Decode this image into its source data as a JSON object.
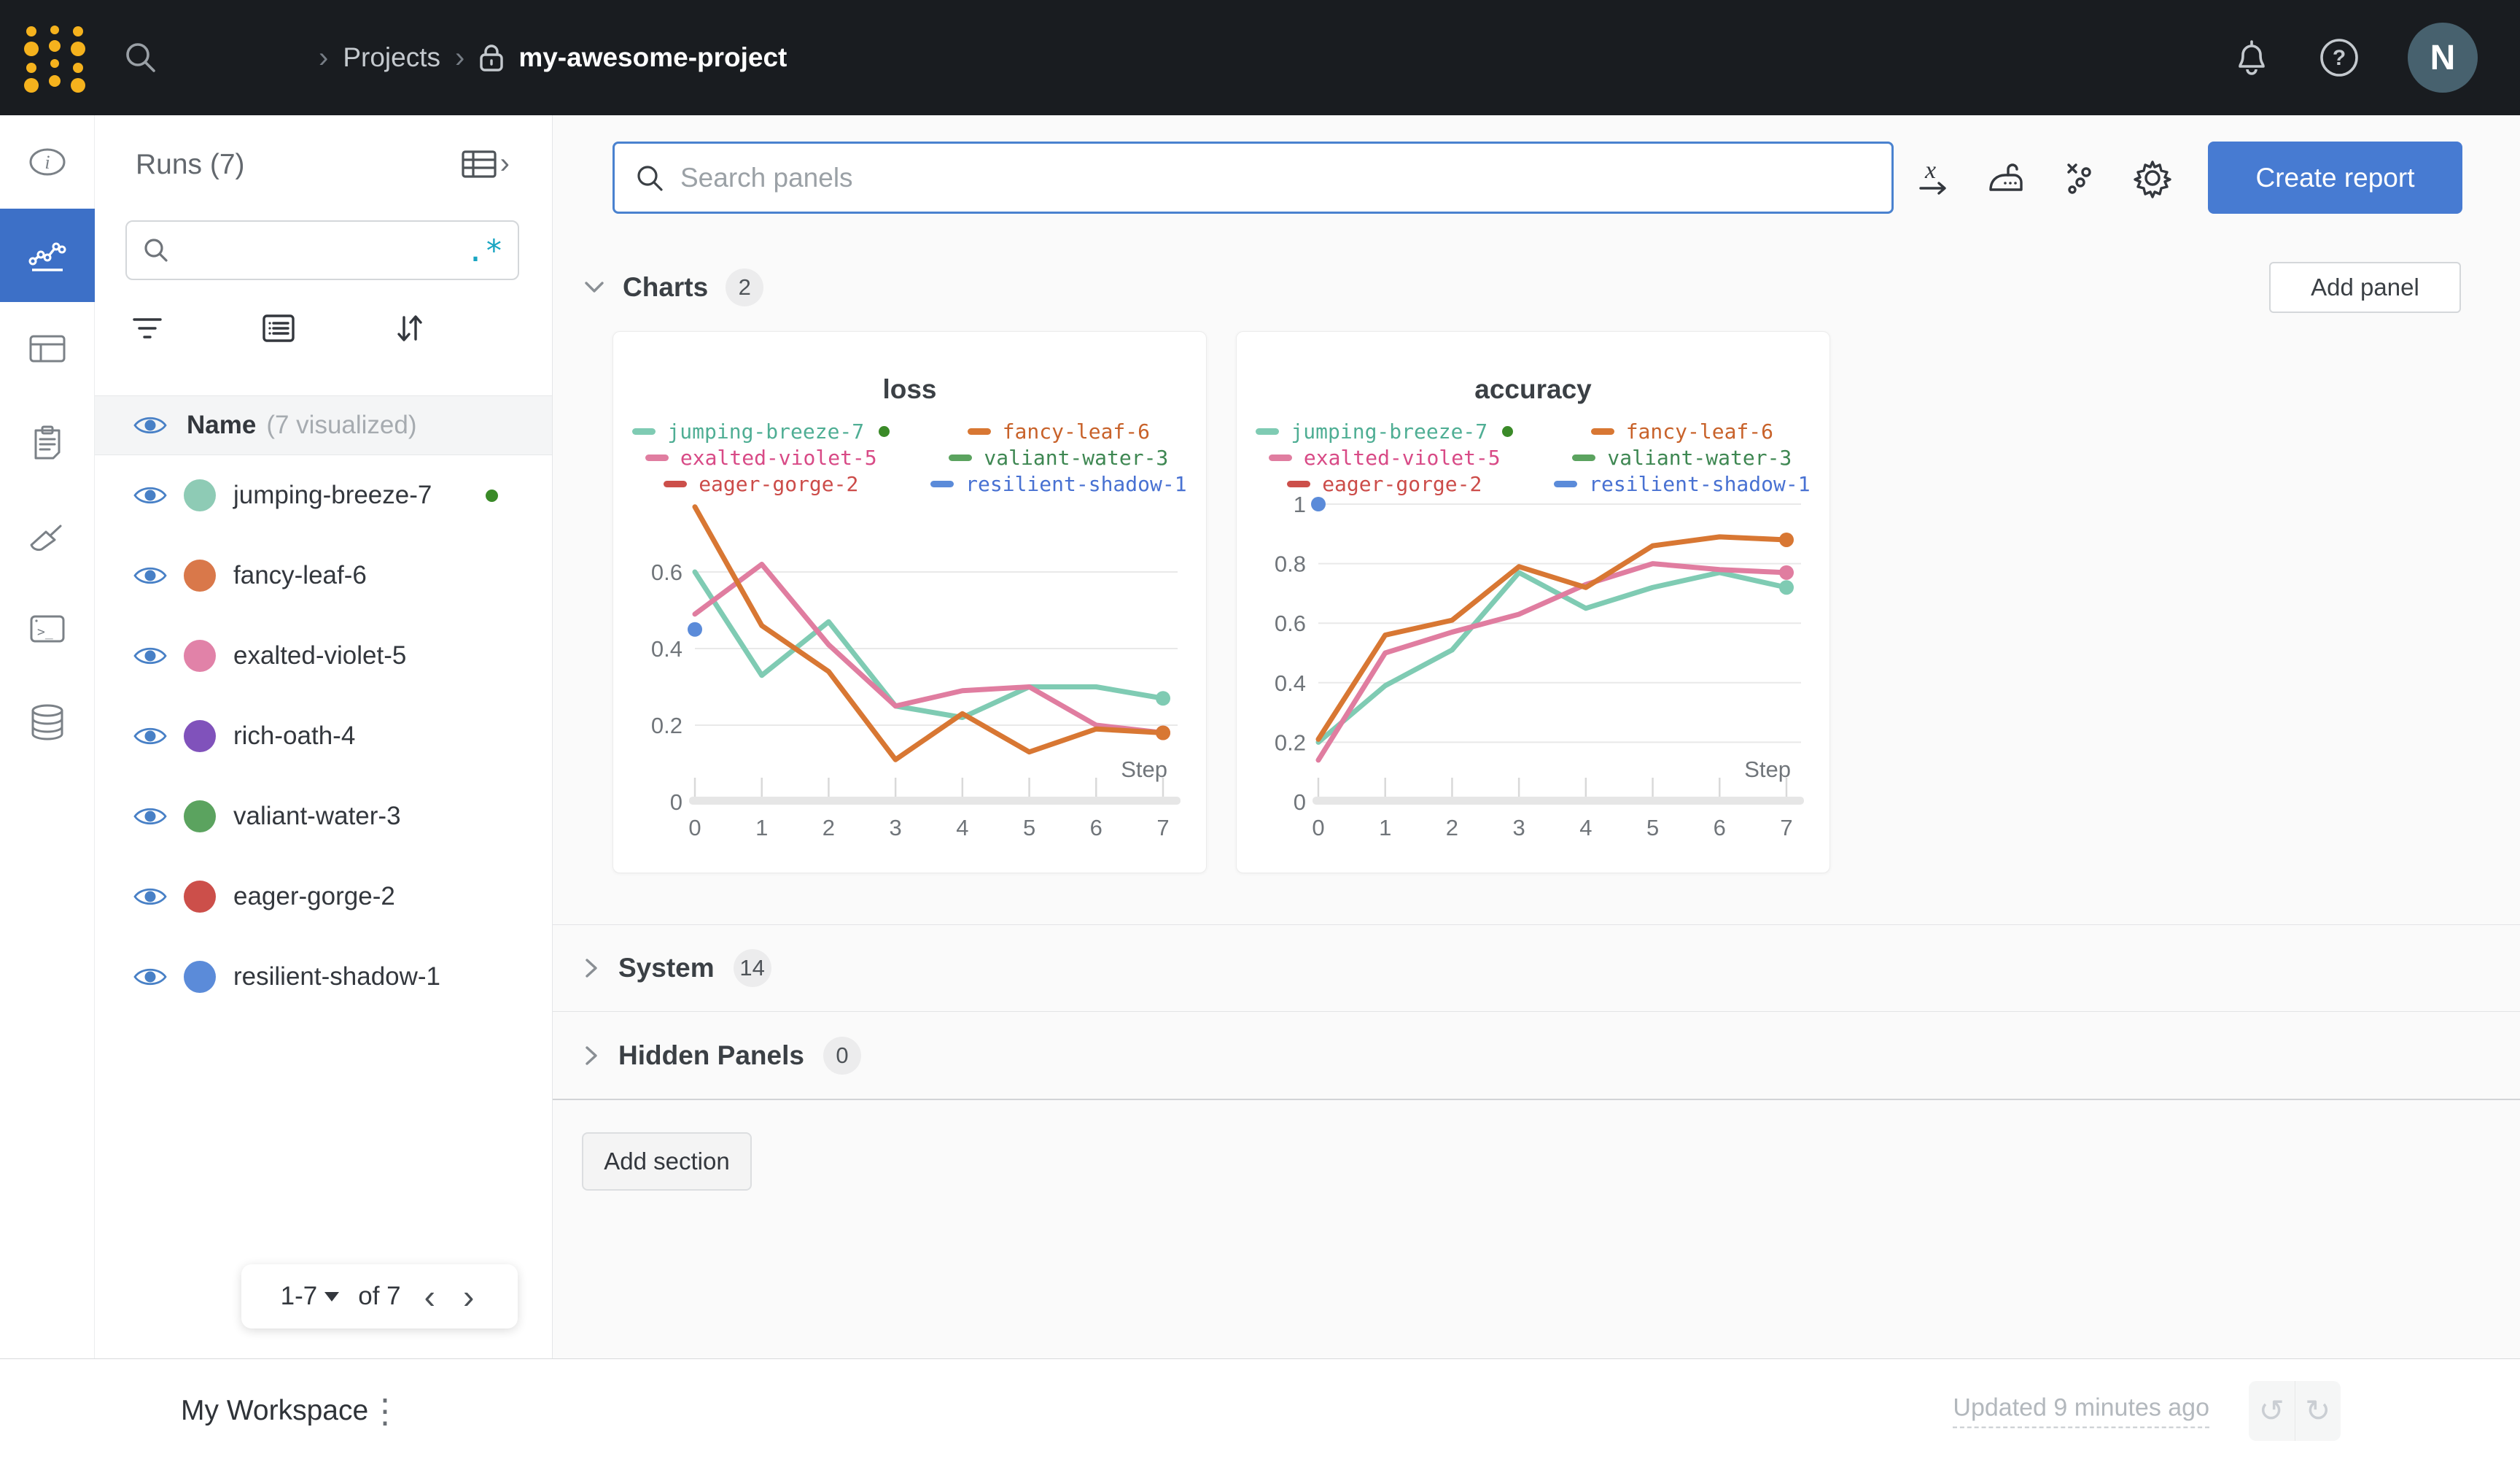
{
  "colors": {
    "topbar_bg": "#191c20",
    "accent_blue": "#477bd2",
    "rail_selected": "#3d70c7",
    "eye_blue": "#4880c6",
    "logo_yellow": "#f5b21d",
    "regex_teal": "#19a5c2",
    "running_green": "#3a8a28",
    "main_bg": "#fafafa"
  },
  "topbar": {
    "breadcrumb": {
      "sep": "›",
      "items": [
        "Projects",
        "my-awesome-project"
      ]
    },
    "avatar_initial": "N"
  },
  "sidebar": {
    "title": "Runs (7)",
    "search_placeholder": "",
    "regex_toggle": ".*",
    "header": {
      "name": "Name",
      "visualized": "(7 visualized)"
    },
    "runs": [
      {
        "name": "jumping-breeze-7",
        "color": "#8ecbb5",
        "running": true
      },
      {
        "name": "fancy-leaf-6",
        "color": "#d9784a"
      },
      {
        "name": "exalted-violet-5",
        "color": "#e182a8"
      },
      {
        "name": "rich-oath-4",
        "color": "#8052bb"
      },
      {
        "name": "valiant-water-3",
        "color": "#5ba35f"
      },
      {
        "name": "eager-gorge-2",
        "color": "#cc4f4a"
      },
      {
        "name": "resilient-shadow-1",
        "color": "#5b8bd9"
      }
    ],
    "pagination": {
      "range": "1-7",
      "of": "of 7",
      "prev": "‹",
      "next": "›"
    }
  },
  "toolbar": {
    "search_placeholder": "Search panels",
    "create_report_label": "Create report"
  },
  "sections": {
    "charts": {
      "label": "Charts",
      "count": "2",
      "add_panel_label": "Add panel"
    },
    "system": {
      "label": "System",
      "count": "14"
    },
    "hidden": {
      "label": "Hidden Panels",
      "count": "0"
    },
    "add_section_label": "Add section"
  },
  "footer": {
    "workspace": "My Workspace",
    "updated": "Updated 9 minutes ago"
  },
  "chart_data": [
    {
      "type": "line",
      "title": "loss",
      "xlabel": "Step",
      "x": [
        0,
        1,
        2,
        3,
        4,
        5,
        6,
        7
      ],
      "yticks": [
        0,
        0.2,
        0.4,
        0.6
      ],
      "ylim": [
        0,
        0.8
      ],
      "grid": true,
      "legend_position": "top",
      "draw_order": [
        0,
        2,
        1,
        5
      ],
      "series": [
        {
          "name": "jumping-breeze-7",
          "color": "#7fcbb3",
          "text_color": "#4fae94",
          "running": true,
          "values": [
            0.6,
            0.33,
            0.47,
            0.25,
            0.22,
            0.3,
            0.3,
            0.27
          ]
        },
        {
          "name": "fancy-leaf-6",
          "color": "#d87733",
          "text_color": "#c8622a",
          "values": [
            0.77,
            0.46,
            0.34,
            0.11,
            0.23,
            0.13,
            0.19,
            0.18
          ]
        },
        {
          "name": "exalted-violet-5",
          "color": "#e07da0",
          "text_color": "#d84a86",
          "values": [
            0.49,
            0.62,
            0.41,
            0.25,
            0.29,
            0.3,
            0.2,
            0.18
          ]
        },
        {
          "name": "valiant-water-3",
          "color": "#5ba35f",
          "text_color": "#3e8752",
          "values": []
        },
        {
          "name": "eager-gorge-2",
          "color": "#cc4f4a",
          "text_color": "#cc4c49",
          "values": []
        },
        {
          "name": "resilient-shadow-1",
          "color": "#5b8bd9",
          "text_color": "#4871d2",
          "values": [
            0.45
          ]
        }
      ]
    },
    {
      "type": "line",
      "title": "accuracy",
      "xlabel": "Step",
      "x": [
        0,
        1,
        2,
        3,
        4,
        5,
        6,
        7
      ],
      "yticks": [
        0,
        0.2,
        0.4,
        0.6,
        0.8,
        1
      ],
      "ylim": [
        0,
        1.03
      ],
      "grid": true,
      "legend_position": "top",
      "draw_order": [
        0,
        2,
        1,
        5
      ],
      "series": [
        {
          "name": "jumping-breeze-7",
          "color": "#7fcbb3",
          "text_color": "#4fae94",
          "running": true,
          "values": [
            0.2,
            0.39,
            0.51,
            0.77,
            0.65,
            0.72,
            0.77,
            0.72
          ]
        },
        {
          "name": "fancy-leaf-6",
          "color": "#d87733",
          "text_color": "#c8622a",
          "values": [
            0.21,
            0.56,
            0.61,
            0.79,
            0.72,
            0.86,
            0.89,
            0.88
          ]
        },
        {
          "name": "exalted-violet-5",
          "color": "#e07da0",
          "text_color": "#d84a86",
          "values": [
            0.14,
            0.5,
            0.57,
            0.63,
            0.73,
            0.8,
            0.78,
            0.77
          ]
        },
        {
          "name": "valiant-water-3",
          "color": "#5ba35f",
          "text_color": "#3e8752",
          "values": []
        },
        {
          "name": "eager-gorge-2",
          "color": "#cc4f4a",
          "text_color": "#cc4c49",
          "values": []
        },
        {
          "name": "resilient-shadow-1",
          "color": "#5b8bd9",
          "text_color": "#4871d2",
          "values": [
            1.0
          ]
        }
      ]
    }
  ]
}
